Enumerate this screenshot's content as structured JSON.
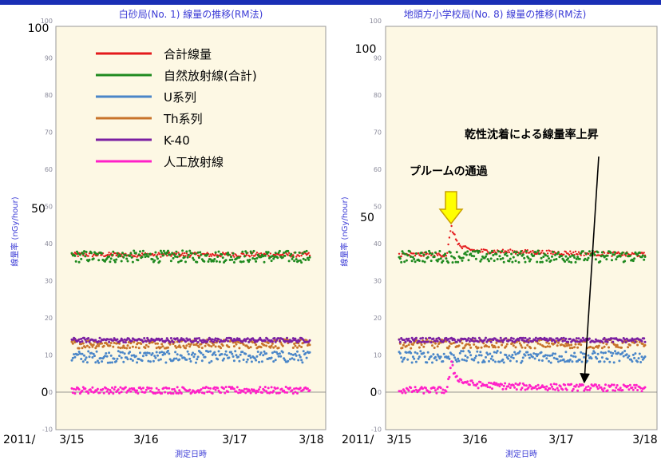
{
  "colors": {
    "total": "#e41a1c",
    "natural": "#1f8a1f",
    "U": "#4a86c8",
    "Th": "#c8732a",
    "K40": "#7b1fa2",
    "artificial": "#ff20c8",
    "plot_bg": "#fdf8e4",
    "blue_text": "#3b3bd6",
    "arrow_fill": "#ffff00"
  },
  "chart_data": [
    {
      "type": "scatter",
      "title": "白砂局(No. 1)  線量の推移(RM法)",
      "xlabel": "測定日時",
      "ylabel": "線量率 (nGy/hour)",
      "ylim": [
        -10,
        100
      ],
      "yticks_small": [
        "100",
        "90",
        "80",
        "70",
        "60",
        "50",
        "40",
        "30",
        "20",
        "10",
        "0",
        "-10"
      ],
      "yticks_big": [
        "100",
        "50",
        "0"
      ],
      "xticks": [
        "3/15",
        "3/16",
        "3/17",
        "3/18"
      ],
      "x_prefix": "2011/",
      "legend": [
        "合計線量",
        "自然放射線(合計)",
        "U系列",
        "Th系列",
        "K-40",
        "人工放射線"
      ],
      "legend_placement": "top-left",
      "series": [
        {
          "name": "合計線量",
          "color_key": "total",
          "x": [
            0.0,
            3.2
          ],
          "y": [
            37,
            37
          ]
        },
        {
          "name": "自然放射線(合計)",
          "color_key": "natural",
          "x": [
            0.0,
            3.2
          ],
          "y": [
            36.5,
            36.5
          ]
        },
        {
          "name": "U系列",
          "color_key": "U",
          "x": [
            0.0,
            3.2
          ],
          "y": [
            9.5,
            9.5
          ]
        },
        {
          "name": "Th系列",
          "color_key": "Th",
          "x": [
            0.0,
            3.2
          ],
          "y": [
            13,
            13
          ]
        },
        {
          "name": "K-40",
          "color_key": "K40",
          "x": [
            0.0,
            3.2
          ],
          "y": [
            14,
            14
          ]
        },
        {
          "name": "人工放射線",
          "color_key": "artificial",
          "x": [
            0.0,
            3.2
          ],
          "y": [
            0.5,
            0.5
          ]
        }
      ],
      "annotations": []
    },
    {
      "type": "scatter",
      "title": "地頭方小学校局(No. 8)  線量の推移(RM法)",
      "xlabel": "測定日時",
      "ylabel": "線量率 (nGy/hour)",
      "ylim": [
        -10,
        100
      ],
      "yticks_small": [
        "100",
        "90",
        "80",
        "70",
        "60",
        "50",
        "40",
        "30",
        "20",
        "10",
        "0",
        "-10"
      ],
      "yticks_big": [
        "100",
        "50",
        "0"
      ],
      "xticks": [
        "3/15",
        "3/16",
        "3/17",
        "3/18"
      ],
      "x_prefix": "2011/",
      "legend": [],
      "series": [
        {
          "name": "合計線量",
          "color_key": "total",
          "x": [
            0.0,
            0.62,
            0.68,
            0.72,
            0.8,
            1.0,
            3.2
          ],
          "y": [
            37,
            37,
            44.5,
            42,
            39,
            38,
            37
          ]
        },
        {
          "name": "自然放射線(合計)",
          "color_key": "natural",
          "x": [
            0.0,
            3.2
          ],
          "y": [
            36.5,
            36.5
          ]
        },
        {
          "name": "U系列",
          "color_key": "U",
          "x": [
            0.0,
            3.2
          ],
          "y": [
            9.5,
            9.5
          ]
        },
        {
          "name": "Th系列",
          "color_key": "Th",
          "x": [
            0.0,
            3.2
          ],
          "y": [
            13,
            13
          ]
        },
        {
          "name": "K-40",
          "color_key": "K40",
          "x": [
            0.0,
            3.2
          ],
          "y": [
            14,
            14
          ]
        },
        {
          "name": "人工放射線",
          "color_key": "artificial",
          "x": [
            0.0,
            0.62,
            0.68,
            0.72,
            0.8,
            1.0,
            1.5,
            3.2
          ],
          "y": [
            0.5,
            0.5,
            7.5,
            5,
            3,
            2,
            1.5,
            1
          ]
        }
      ],
      "annotations": [
        "プルームの通過",
        "乾性沈着による線量率上昇"
      ]
    }
  ]
}
